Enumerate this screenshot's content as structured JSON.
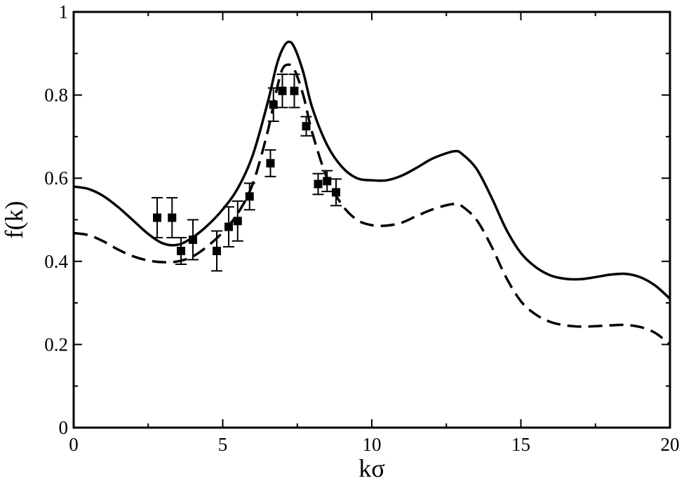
{
  "chart_data": {
    "type": "line",
    "title": "",
    "xlabel": "kσ",
    "ylabel": "f(k)",
    "xlim": [
      0,
      20
    ],
    "ylim": [
      0,
      1
    ],
    "x_ticks": [
      0,
      5,
      10,
      15,
      20
    ],
    "y_ticks": [
      0,
      0.2,
      0.4,
      0.6,
      0.8,
      1
    ],
    "x_tick_labels": [
      "0",
      "5",
      "10",
      "15",
      "20"
    ],
    "y_tick_labels": [
      "0",
      "0.2",
      "0.4",
      "0.6",
      "0.8",
      "1"
    ],
    "grid": false,
    "legend": "none",
    "series": [
      {
        "style": "solid",
        "x": [
          0,
          0.5,
          1,
          1.5,
          2,
          2.5,
          3,
          3.5,
          4,
          4.5,
          5,
          5.5,
          6,
          6.5,
          6.8,
          7,
          7.2,
          7.4,
          7.7,
          8,
          8.5,
          9,
          9.5,
          10,
          10.5,
          11,
          11.5,
          12,
          12.5,
          12.8,
          13,
          13.5,
          14,
          14.5,
          15,
          15.5,
          16,
          16.5,
          17,
          17.5,
          18,
          18.5,
          19,
          19.5,
          20
        ],
        "y": [
          0.58,
          0.574,
          0.557,
          0.53,
          0.498,
          0.466,
          0.443,
          0.44,
          0.458,
          0.487,
          0.525,
          0.575,
          0.654,
          0.78,
          0.87,
          0.91,
          0.928,
          0.915,
          0.855,
          0.77,
          0.68,
          0.627,
          0.6,
          0.595,
          0.595,
          0.606,
          0.625,
          0.646,
          0.66,
          0.665,
          0.66,
          0.624,
          0.556,
          0.478,
          0.42,
          0.386,
          0.366,
          0.358,
          0.357,
          0.362,
          0.368,
          0.37,
          0.362,
          0.342,
          0.31
        ]
      },
      {
        "style": "dashed",
        "x": [
          0,
          0.5,
          1,
          1.5,
          2,
          2.5,
          3,
          3.5,
          4,
          4.5,
          5,
          5.5,
          6,
          6.5,
          6.8,
          7,
          7.2,
          7.4,
          7.7,
          8,
          8.5,
          9,
          9.5,
          10,
          10.5,
          11,
          11.5,
          12,
          12.5,
          12.8,
          13,
          13.5,
          14,
          14.5,
          15,
          15.5,
          16,
          16.5,
          17,
          17.5,
          18,
          18.5,
          19,
          19.5,
          20
        ],
        "y": [
          0.468,
          0.463,
          0.448,
          0.428,
          0.412,
          0.402,
          0.398,
          0.4,
          0.412,
          0.437,
          0.47,
          0.515,
          0.585,
          0.71,
          0.81,
          0.862,
          0.873,
          0.862,
          0.8,
          0.71,
          0.6,
          0.536,
          0.5,
          0.487,
          0.486,
          0.493,
          0.509,
          0.524,
          0.535,
          0.538,
          0.534,
          0.501,
          0.438,
          0.362,
          0.304,
          0.272,
          0.254,
          0.246,
          0.243,
          0.244,
          0.246,
          0.247,
          0.242,
          0.228,
          0.2
        ]
      },
      {
        "style": "markers-errorbars",
        "marker": "square",
        "x": [
          2.8,
          3.3,
          3.6,
          4.0,
          4.8,
          5.2,
          5.5,
          5.9,
          6.6,
          6.7,
          7.0,
          7.4,
          7.8,
          8.2,
          8.5,
          8.8
        ],
        "y": [
          0.505,
          0.505,
          0.425,
          0.452,
          0.425,
          0.483,
          0.497,
          0.556,
          0.636,
          0.777,
          0.81,
          0.81,
          0.725,
          0.586,
          0.593,
          0.566
        ],
        "err": [
          0.048,
          0.048,
          0.032,
          0.048,
          0.048,
          0.048,
          0.048,
          0.032,
          0.032,
          0.04,
          0.04,
          0.04,
          0.023,
          0.025,
          0.025,
          0.032
        ]
      }
    ]
  }
}
